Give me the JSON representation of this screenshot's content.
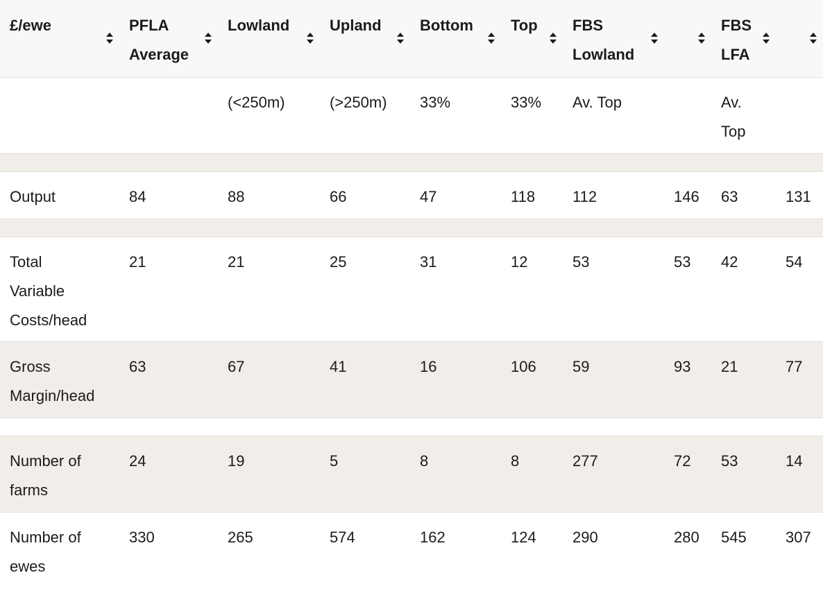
{
  "table": {
    "headers": [
      "£/ewe",
      "PFLA Average",
      "Lowland",
      "Upland",
      "Bottom",
      "Top",
      "FBS Lowland",
      null,
      "FBS LFA",
      null
    ],
    "subheaders": [
      null,
      null,
      "(<250m)",
      "(>250m)",
      "33%",
      "33%",
      "Av. Top",
      null,
      "Av. Top",
      null
    ],
    "rows": [
      [
        "Output",
        84,
        88,
        66,
        47,
        118,
        112,
        146,
        63,
        131
      ],
      [
        "Total Variable Costs/head",
        21,
        21,
        25,
        31,
        12,
        53,
        53,
        42,
        54
      ],
      [
        "Gross Margin/head",
        63,
        67,
        41,
        16,
        106,
        59,
        93,
        21,
        77
      ],
      [
        "Number of farms",
        24,
        19,
        5,
        8,
        8,
        277,
        72,
        53,
        14
      ],
      [
        "Number of ewes",
        330,
        265,
        574,
        162,
        124,
        290,
        280,
        545,
        307
      ]
    ]
  }
}
